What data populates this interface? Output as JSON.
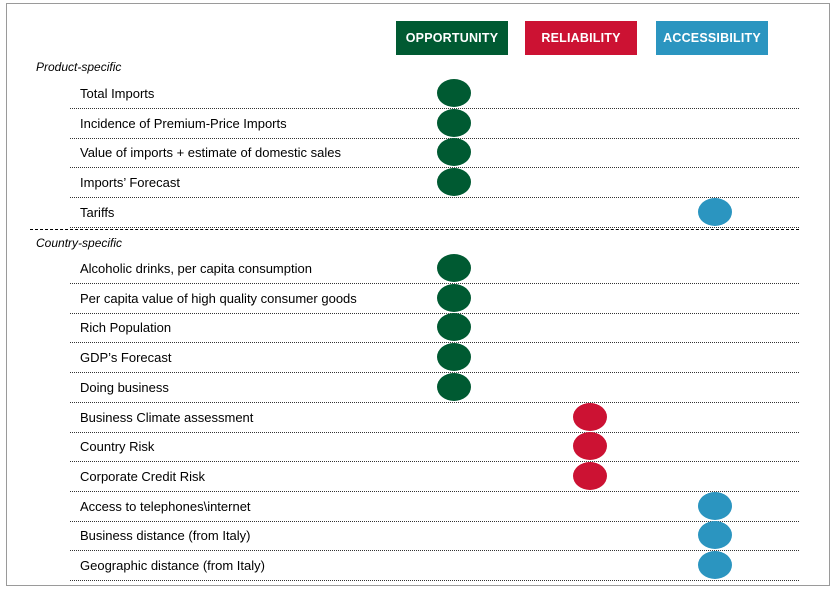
{
  "headers": {
    "opportunity": "OPPORTUNITY",
    "reliability": "RELIABILITY",
    "accessibility": "ACCESSIBILITY"
  },
  "colors": {
    "opportunity": "#005a32",
    "reliability": "#cc1233",
    "accessibility": "#2b95c0"
  },
  "product_section": {
    "title": "Product-specific",
    "rows": [
      {
        "label": "Total Imports",
        "category": "opportunity"
      },
      {
        "label": "Incidence of Premium-Price Imports",
        "category": "opportunity"
      },
      {
        "label": "Value of imports + estimate of domestic sales",
        "category": "opportunity"
      },
      {
        "label": "Imports’ Forecast",
        "category": "opportunity"
      },
      {
        "label": "Tariffs",
        "category": "accessibility"
      }
    ]
  },
  "country_section": {
    "title": "Country-specific",
    "rows": [
      {
        "label": "Alcoholic drinks, per capita consumption",
        "category": "opportunity"
      },
      {
        "label": "Per capita value of high quality consumer goods",
        "category": "opportunity"
      },
      {
        "label": "Rich Population",
        "category": "opportunity"
      },
      {
        "label": "GDP’s Forecast",
        "category": "opportunity"
      },
      {
        "label": "Doing business",
        "category": "opportunity"
      },
      {
        "label": "Business Climate assessment",
        "category": "reliability"
      },
      {
        "label": "Country Risk",
        "category": "reliability"
      },
      {
        "label": "Corporate Credit Risk",
        "category": "reliability"
      },
      {
        "label": "Access to telephones\\internet",
        "category": "accessibility"
      },
      {
        "label": "Business distance (from Italy)",
        "category": "accessibility"
      },
      {
        "label": "Geographic distance (from Italy)",
        "category": "accessibility"
      }
    ]
  }
}
